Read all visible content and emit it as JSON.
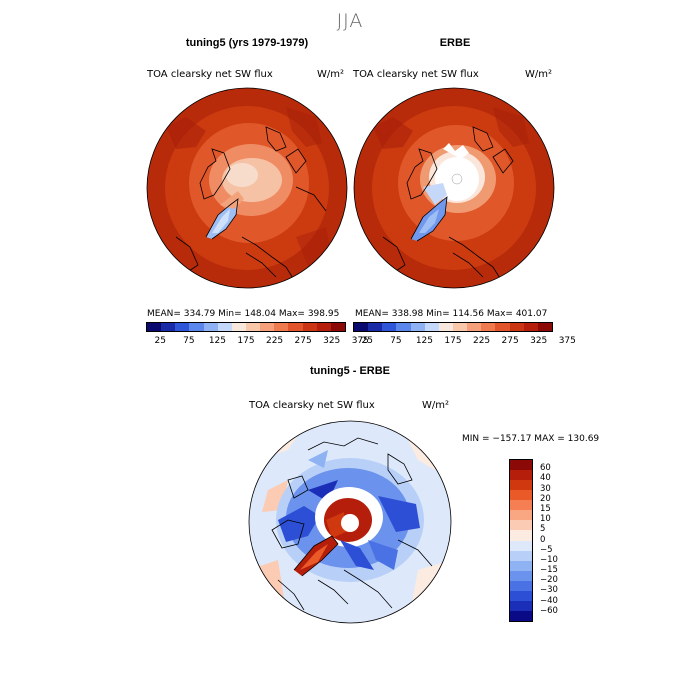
{
  "season": "JJA",
  "panels": [
    {
      "title": "tuning5 (yrs 1979-1979)",
      "subtitle": "TOA clearsky net SW flux",
      "unit": "W/m²",
      "stats": "MEAN= 334.79   Min= 148.04   Max= 398.95"
    },
    {
      "title": "ERBE",
      "subtitle": "TOA clearsky net SW flux",
      "unit": "W/m²",
      "stats": "MEAN= 338.98   Min= 114.56   Max= 401.07"
    }
  ],
  "abs_colorbar": {
    "colors": [
      "#0a0a6e",
      "#1a2ba8",
      "#2f55d8",
      "#5b86ec",
      "#8fb2f5",
      "#c4d8fb",
      "#f7e7dc",
      "#f9c7aa",
      "#f5a07a",
      "#ef7a4e",
      "#e2552b",
      "#cc3513",
      "#b41e0a",
      "#8b0a08"
    ],
    "ticks": [
      "25",
      "75",
      "125",
      "175",
      "225",
      "275",
      "325",
      "375"
    ]
  },
  "diff_panel": {
    "title": "tuning5 - ERBE",
    "subtitle": "TOA clearsky net SW flux",
    "unit": "W/m²",
    "stats": "MIN = −157.17  MAX = 130.69"
  },
  "diff_colorbar": {
    "colors": [
      "#8b0a08",
      "#b41e0a",
      "#d0380f",
      "#ea5a28",
      "#f57f52",
      "#f9a683",
      "#fbcbb3",
      "#fcebe1",
      "#dde9fb",
      "#b8d0f8",
      "#8fb2f3",
      "#6b92ec",
      "#4a72e4",
      "#2c4fd6",
      "#1b2eb8",
      "#0a0a86"
    ],
    "labels": [
      "60",
      "40",
      "30",
      "20",
      "15",
      "10",
      "5",
      "0",
      "−5",
      "−10",
      "−15",
      "−20",
      "−30",
      "−40",
      "−60"
    ]
  }
}
